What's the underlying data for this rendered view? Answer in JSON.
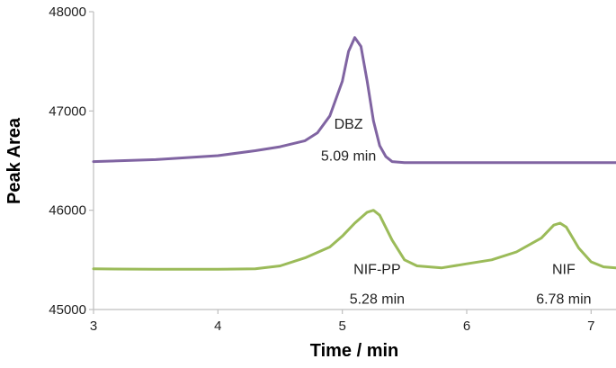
{
  "chart_data": {
    "type": "line",
    "title": "",
    "xlabel": "Time / min",
    "ylabel": "Peak Area",
    "xlim": [
      3,
      7.2
    ],
    "ylim": [
      45000,
      48000
    ],
    "x_ticks": [
      "3",
      "4",
      "5",
      "6",
      "7"
    ],
    "y_ticks": [
      "45000",
      "46000",
      "47000",
      "48000"
    ],
    "grid": false,
    "legend": "none",
    "series": [
      {
        "color": "#8064a2",
        "points": [
          [
            3.0,
            46490
          ],
          [
            3.5,
            46510
          ],
          [
            4.0,
            46550
          ],
          [
            4.3,
            46600
          ],
          [
            4.5,
            46640
          ],
          [
            4.7,
            46700
          ],
          [
            4.8,
            46780
          ],
          [
            4.9,
            46950
          ],
          [
            5.0,
            47300
          ],
          [
            5.05,
            47600
          ],
          [
            5.1,
            47740
          ],
          [
            5.15,
            47650
          ],
          [
            5.2,
            47300
          ],
          [
            5.25,
            46900
          ],
          [
            5.3,
            46650
          ],
          [
            5.35,
            46540
          ],
          [
            5.4,
            46490
          ],
          [
            5.5,
            46480
          ],
          [
            6.0,
            46480
          ],
          [
            6.5,
            46480
          ],
          [
            7.0,
            46480
          ],
          [
            7.2,
            46480
          ]
        ]
      },
      {
        "color": "#9bbb59",
        "points": [
          [
            3.0,
            45410
          ],
          [
            3.5,
            45405
          ],
          [
            4.0,
            45405
          ],
          [
            4.3,
            45410
          ],
          [
            4.5,
            45440
          ],
          [
            4.7,
            45520
          ],
          [
            4.9,
            45630
          ],
          [
            5.0,
            45740
          ],
          [
            5.1,
            45870
          ],
          [
            5.2,
            45980
          ],
          [
            5.25,
            46000
          ],
          [
            5.3,
            45950
          ],
          [
            5.4,
            45700
          ],
          [
            5.5,
            45500
          ],
          [
            5.6,
            45440
          ],
          [
            5.8,
            45420
          ],
          [
            6.0,
            45460
          ],
          [
            6.2,
            45500
          ],
          [
            6.4,
            45580
          ],
          [
            6.6,
            45720
          ],
          [
            6.7,
            45850
          ],
          [
            6.75,
            45870
          ],
          [
            6.8,
            45830
          ],
          [
            6.9,
            45620
          ],
          [
            7.0,
            45480
          ],
          [
            7.1,
            45430
          ],
          [
            7.2,
            45420
          ]
        ]
      }
    ],
    "annotations": [
      {
        "id": "dbz",
        "name": "DBZ",
        "time": "5.09 min",
        "x": 5.05,
        "y": 46820,
        "y2": 46500
      },
      {
        "id": "nif-pp",
        "name": "NIF-PP",
        "time": "5.28 min",
        "x": 5.28,
        "y": 45360,
        "y2": 45060
      },
      {
        "id": "nif",
        "name": "NIF",
        "time": "6.78 min",
        "x": 6.78,
        "y": 45360,
        "y2": 45060
      }
    ]
  }
}
